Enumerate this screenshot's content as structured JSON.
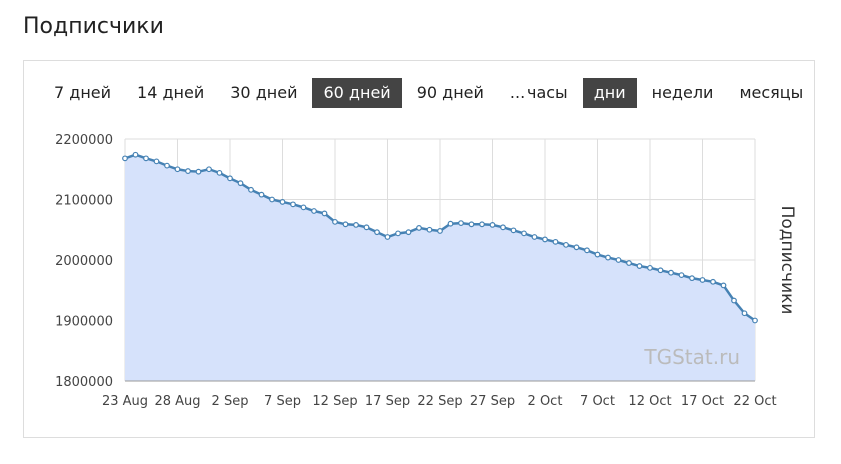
{
  "header": {
    "title": "Подписчики"
  },
  "range_buttons": [
    {
      "label": "7 дней",
      "active": false
    },
    {
      "label": "14 дней",
      "active": false
    },
    {
      "label": "30 дней",
      "active": false
    },
    {
      "label": "60 дней",
      "active": true
    },
    {
      "label": "90 дней",
      "active": false
    },
    {
      "label": "...",
      "active": false
    }
  ],
  "granularity_buttons": [
    {
      "label": "часы",
      "active": false
    },
    {
      "label": "дни",
      "active": true
    },
    {
      "label": "недели",
      "active": false
    },
    {
      "label": "месяцы",
      "active": false
    }
  ],
  "chart_data": {
    "type": "area",
    "y_label": "Подписчики",
    "watermark": "TGStat.ru",
    "color": "#4682b4",
    "fill_color": "#d6e2fb",
    "grid": true,
    "categories": [
      "23 Aug",
      null,
      null,
      null,
      null,
      "28 Aug",
      null,
      null,
      null,
      null,
      "2 Sep",
      null,
      null,
      null,
      null,
      "7 Sep",
      null,
      null,
      null,
      null,
      "12 Sep",
      null,
      null,
      null,
      null,
      "17 Sep",
      null,
      null,
      null,
      null,
      "22 Sep",
      null,
      null,
      null,
      null,
      "27 Sep",
      null,
      null,
      null,
      null,
      "2 Oct",
      null,
      null,
      null,
      null,
      "7 Oct",
      null,
      null,
      null,
      null,
      "12 Oct",
      null,
      null,
      null,
      null,
      "17 Oct",
      null,
      null,
      null,
      null,
      "22 Oct"
    ],
    "values": [
      2168000,
      2174000,
      2168000,
      2163000,
      2156000,
      2150000,
      2147000,
      2146000,
      2150000,
      2144000,
      2135000,
      2127000,
      2116000,
      2108000,
      2100000,
      2096000,
      2092000,
      2087000,
      2081000,
      2077000,
      2063000,
      2059000,
      2058000,
      2054000,
      2046000,
      2038000,
      2044000,
      2046000,
      2053000,
      2050000,
      2048000,
      2060000,
      2061000,
      2059000,
      2059000,
      2058000,
      2054000,
      2049000,
      2044000,
      2038000,
      2034000,
      2030000,
      2025000,
      2021000,
      2016000,
      2009000,
      2004000,
      2000000,
      1995000,
      1990000,
      1987000,
      1983000,
      1979000,
      1975000,
      1970000,
      1967000,
      1964000,
      1958000,
      1933000,
      1912000,
      1900000
    ],
    "ylim": [
      1800000,
      2200000
    ],
    "yticks": [
      1800000,
      1900000,
      2000000,
      2100000,
      2200000
    ]
  }
}
